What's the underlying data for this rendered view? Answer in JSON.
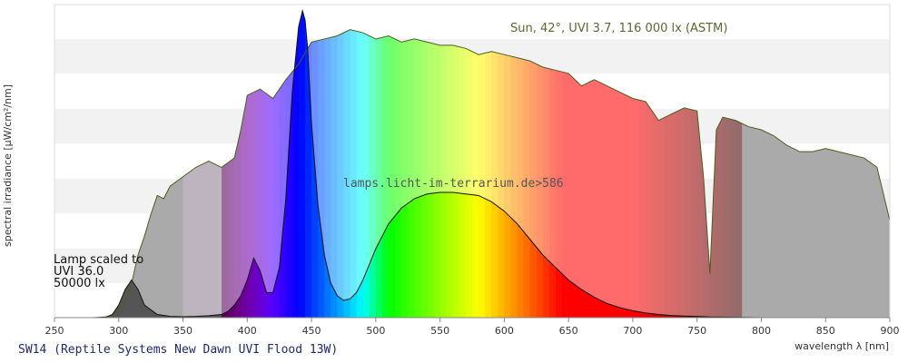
{
  "chart_data": {
    "type": "area",
    "title": "SW14 (Reptile Systems New Dawn UVI Flood 13W)",
    "xlabel": "wavelength λ [nm]",
    "ylabel": "spectral irradiance [µW/cm²/nm]",
    "xlim": [
      250,
      900
    ],
    "ylim": [
      0,
      1
    ],
    "x_ticks": [
      250,
      300,
      350,
      400,
      450,
      500,
      550,
      600,
      650,
      700,
      750,
      800,
      850,
      900
    ],
    "grid": "horizontal alternating bands",
    "annotations": {
      "sun": "Sun, 42°, UVI 3.7, 116 000 lx (ASTM)",
      "lamp_line1": "Lamp scaled to",
      "lamp_line2": "UVI 36.0",
      "lamp_line3": "50000 lx",
      "source": "lamps.licht-im-terrarium.de>586"
    },
    "series": [
      {
        "name": "Sun, 42°, UVI 3.7, 116 000 lx (ASTM)",
        "x": [
          280,
          290,
          300,
          305,
          310,
          315,
          320,
          325,
          330,
          335,
          340,
          350,
          360,
          370,
          380,
          390,
          395,
          400,
          410,
          420,
          430,
          440,
          450,
          460,
          470,
          480,
          490,
          500,
          510,
          520,
          530,
          540,
          550,
          560,
          570,
          580,
          590,
          600,
          610,
          620,
          630,
          640,
          650,
          660,
          670,
          680,
          690,
          700,
          710,
          720,
          730,
          740,
          750,
          755,
          760,
          765,
          770,
          780,
          790,
          800,
          810,
          820,
          830,
          840,
          850,
          860,
          870,
          880,
          890,
          900
        ],
        "values": [
          0,
          0,
          0.02,
          0.05,
          0.11,
          0.2,
          0.26,
          0.33,
          0.39,
          0.38,
          0.42,
          0.45,
          0.48,
          0.5,
          0.48,
          0.51,
          0.6,
          0.71,
          0.73,
          0.7,
          0.76,
          0.81,
          0.88,
          0.89,
          0.9,
          0.92,
          0.91,
          0.89,
          0.9,
          0.88,
          0.89,
          0.88,
          0.87,
          0.87,
          0.86,
          0.84,
          0.85,
          0.84,
          0.83,
          0.82,
          0.8,
          0.79,
          0.78,
          0.74,
          0.76,
          0.74,
          0.72,
          0.7,
          0.69,
          0.63,
          0.65,
          0.67,
          0.66,
          0.45,
          0.14,
          0.6,
          0.64,
          0.63,
          0.61,
          0.6,
          0.58,
          0.55,
          0.53,
          0.53,
          0.54,
          0.53,
          0.52,
          0.51,
          0.48,
          0.31
        ]
      },
      {
        "name": "Lamp scaled to UVI 36.0",
        "x": [
          280,
          290,
          295,
          300,
          305,
          310,
          315,
          320,
          330,
          340,
          350,
          360,
          370,
          380,
          385,
          390,
          395,
          400,
          405,
          410,
          415,
          420,
          425,
          430,
          435,
          440,
          443,
          445,
          447,
          450,
          455,
          460,
          465,
          470,
          475,
          480,
          485,
          490,
          500,
          510,
          520,
          530,
          540,
          550,
          560,
          570,
          580,
          590,
          600,
          610,
          620,
          630,
          640,
          650,
          660,
          670,
          680,
          690,
          700,
          710,
          720,
          730,
          740,
          750,
          760,
          780,
          800,
          850,
          900
        ],
        "values": [
          0,
          0.002,
          0.01,
          0.04,
          0.09,
          0.12,
          0.09,
          0.04,
          0.01,
          0.004,
          0.003,
          0.004,
          0.006,
          0.01,
          0.02,
          0.04,
          0.07,
          0.12,
          0.19,
          0.15,
          0.08,
          0.08,
          0.16,
          0.38,
          0.72,
          0.93,
          0.98,
          0.95,
          0.86,
          0.62,
          0.36,
          0.2,
          0.11,
          0.07,
          0.055,
          0.06,
          0.08,
          0.12,
          0.22,
          0.3,
          0.35,
          0.38,
          0.395,
          0.4,
          0.4,
          0.395,
          0.39,
          0.37,
          0.34,
          0.3,
          0.25,
          0.2,
          0.16,
          0.12,
          0.09,
          0.065,
          0.045,
          0.032,
          0.022,
          0.015,
          0.01,
          0.007,
          0.005,
          0.004,
          0.002,
          0.001,
          0,
          0,
          0
        ]
      }
    ]
  }
}
